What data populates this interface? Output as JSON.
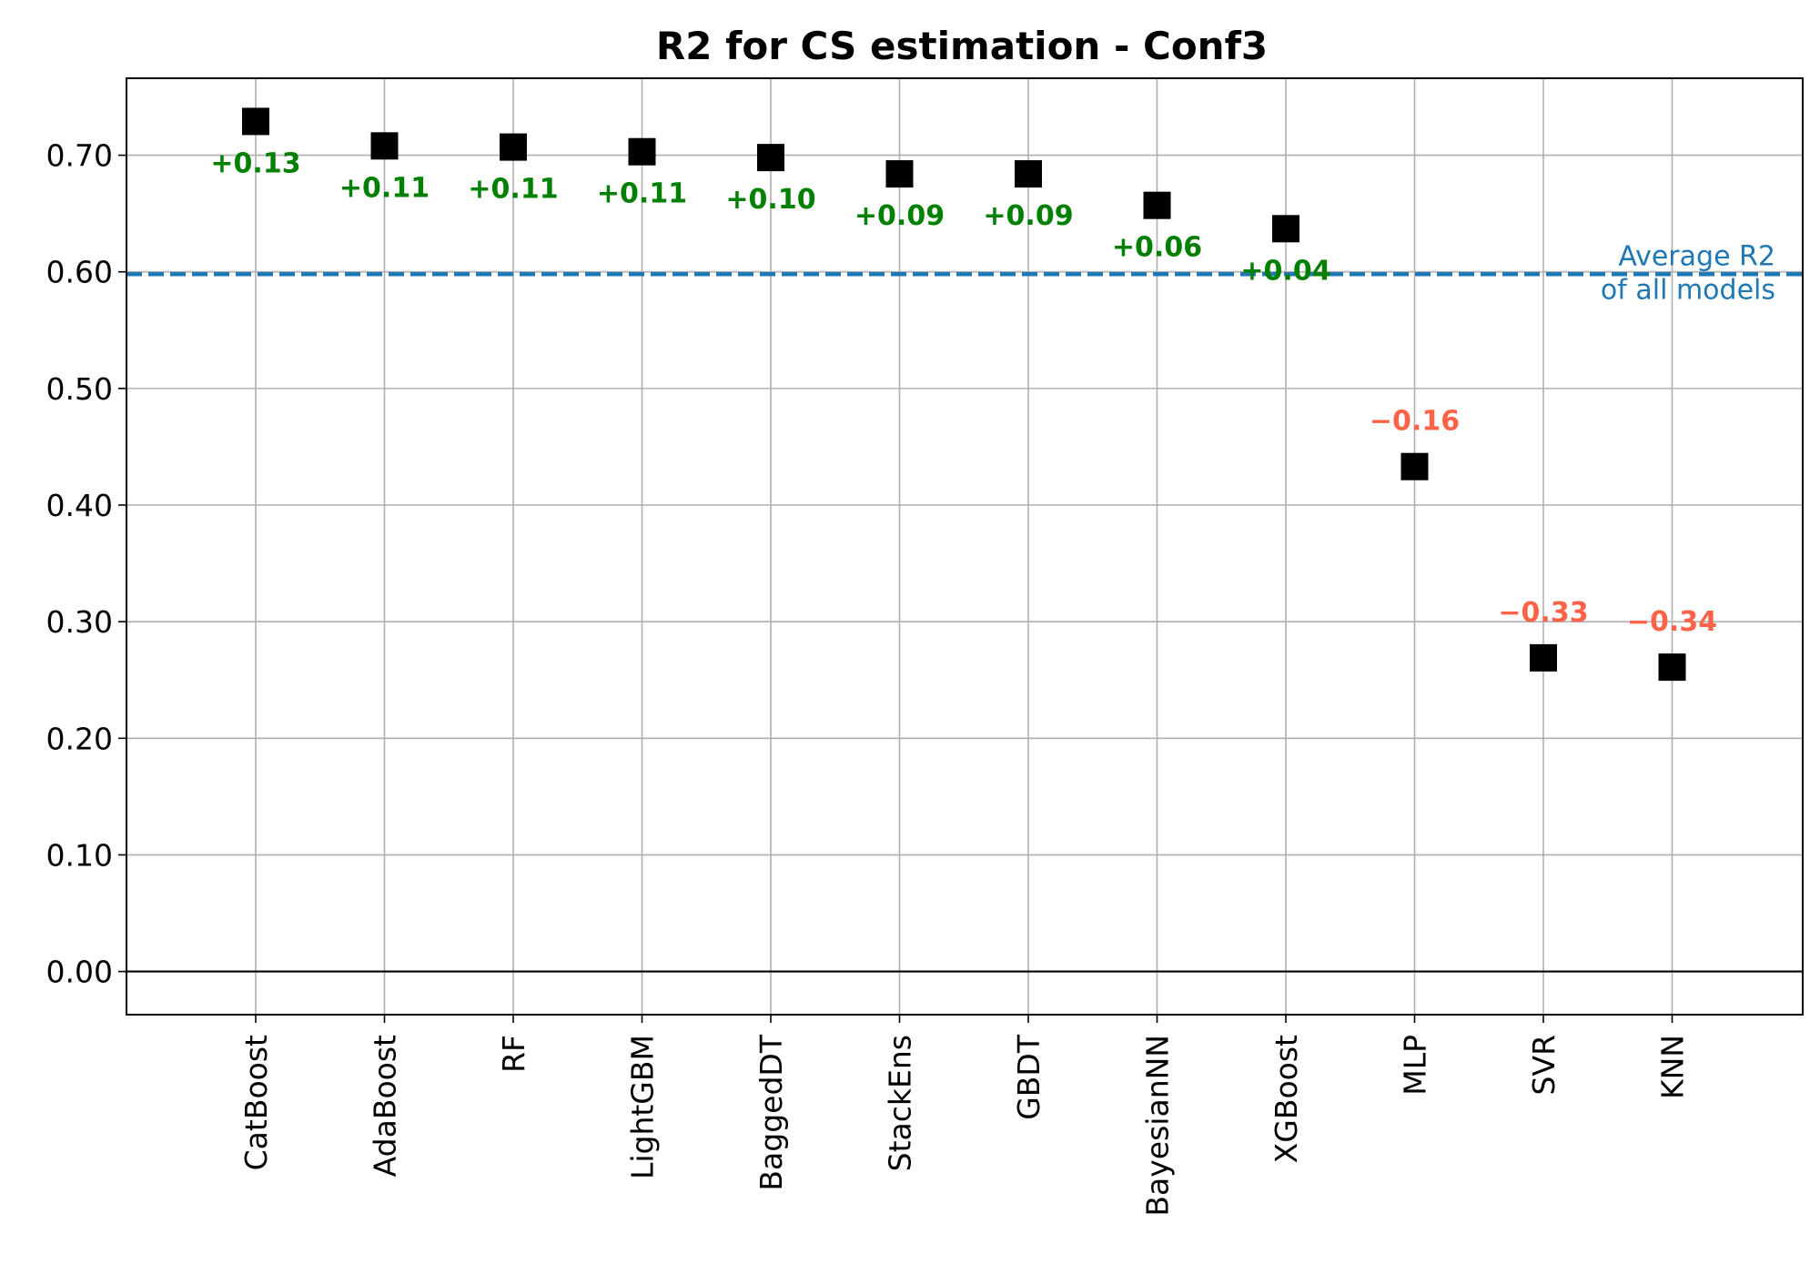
{
  "chart_data": {
    "type": "scatter",
    "title": "R2 for CS estimation - Conf3",
    "xlabel": "",
    "ylabel": "",
    "categories": [
      "CatBoost",
      "AdaBoost",
      "RF",
      "LightGBM",
      "BaggedDT",
      "StackEns",
      "GBDT",
      "BayesianNN",
      "XGBoost",
      "MLP",
      "SVR",
      "KNN"
    ],
    "values": [
      0.729,
      0.708,
      0.707,
      0.703,
      0.698,
      0.684,
      0.684,
      0.657,
      0.637,
      0.433,
      0.269,
      0.261
    ],
    "annotations": [
      "+0.13",
      "+0.11",
      "+0.11",
      "+0.11",
      "+0.10",
      "+0.09",
      "+0.09",
      "+0.06",
      "+0.04",
      "−0.16",
      "−0.33",
      "−0.34"
    ],
    "ylim": [
      -0.037,
      0.766
    ],
    "yticks": [
      0.0,
      0.1,
      0.2,
      0.3,
      0.4,
      0.5,
      0.6,
      0.7
    ],
    "ytick_labels": [
      "0.00",
      "0.10",
      "0.20",
      "0.30",
      "0.40",
      "0.50",
      "0.60",
      "0.70"
    ],
    "reference_line": {
      "value": 0.598,
      "label_line1": "Average R2",
      "label_line2": "of all models"
    },
    "zero_line": 0.0,
    "grid": true,
    "colors": {
      "marker": "#000000",
      "positive": "#008000",
      "negative": "#ff6347",
      "reference": "#1f77b4",
      "grid": "#b0b0b0"
    }
  }
}
